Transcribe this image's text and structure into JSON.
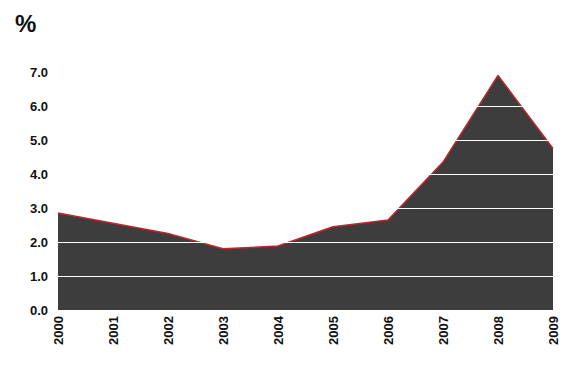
{
  "chart_data": {
    "type": "area",
    "title": "%",
    "categories": [
      "2000",
      "2001",
      "2002",
      "2003",
      "2004",
      "2005",
      "2006",
      "2007",
      "2008",
      "2009"
    ],
    "values": [
      2.85,
      2.55,
      2.25,
      1.8,
      1.88,
      2.45,
      2.65,
      4.35,
      6.9,
      4.75
    ],
    "color": "#c0272d",
    "ylim": [
      0,
      7
    ],
    "yticks": [
      {
        "value": 0,
        "label": "0.0"
      },
      {
        "value": 1,
        "label": "1.0"
      },
      {
        "value": 2,
        "label": "2.0"
      },
      {
        "value": 3,
        "label": "3.0"
      },
      {
        "value": 4,
        "label": "4.0"
      },
      {
        "value": 5,
        "label": "5.0"
      },
      {
        "value": 6,
        "label": "6.0"
      },
      {
        "value": 7,
        "label": "7.0"
      }
    ],
    "grid": true
  }
}
